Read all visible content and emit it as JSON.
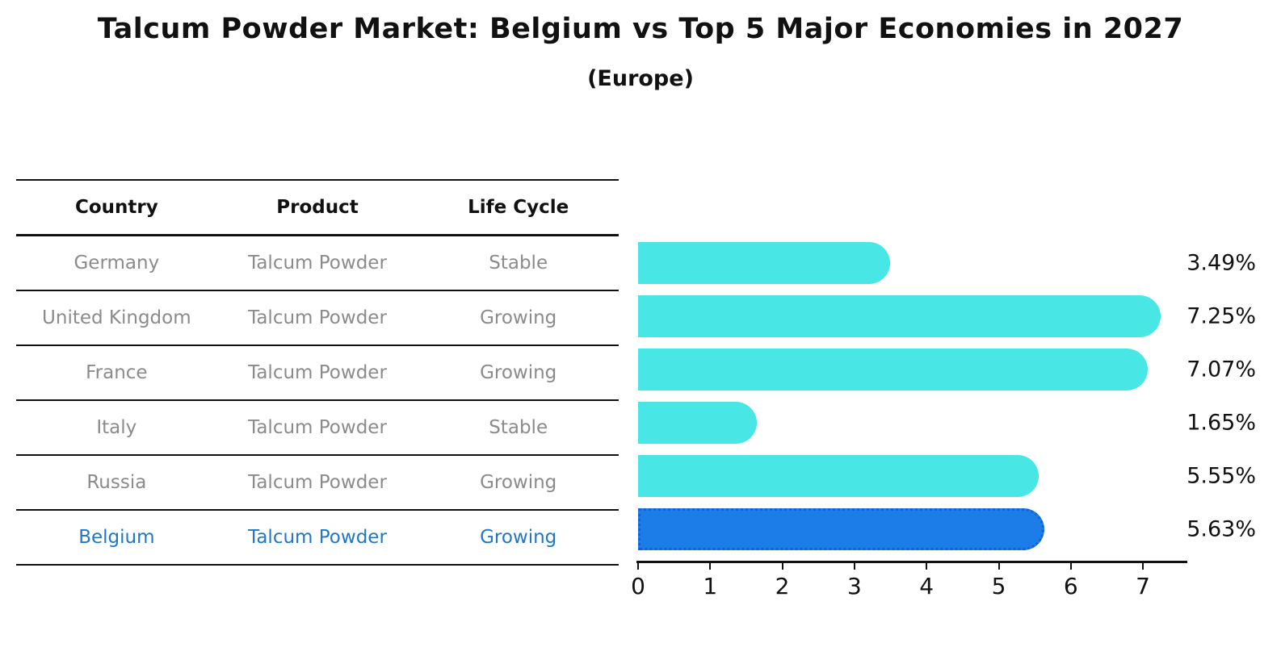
{
  "title": "Talcum Powder Market: Belgium vs Top 5 Major Economies in 2027",
  "subtitle": "(Europe)",
  "table": {
    "headers": [
      "Country",
      "Product",
      "Life Cycle"
    ],
    "rows": [
      {
        "country": "Germany",
        "product": "Talcum Powder",
        "life_cycle": "Stable",
        "highlighted": false
      },
      {
        "country": "United Kingdom",
        "product": "Talcum Powder",
        "life_cycle": "Growing",
        "highlighted": false
      },
      {
        "country": "France",
        "product": "Talcum Powder",
        "life_cycle": "Growing",
        "highlighted": false
      },
      {
        "country": "Italy",
        "product": "Talcum Powder",
        "life_cycle": "Stable",
        "highlighted": false
      },
      {
        "country": "Russia",
        "product": "Talcum Powder",
        "life_cycle": "Growing",
        "highlighted": false
      },
      {
        "country": "Belgium",
        "product": "Talcum Powder",
        "life_cycle": "Growing",
        "highlighted": true
      }
    ]
  },
  "chart_data": {
    "type": "bar",
    "orientation": "horizontal",
    "title": "Talcum Powder Market: Belgium vs Top 5 Major Economies in 2027",
    "subtitle": "(Europe)",
    "categories": [
      "Germany",
      "United Kingdom",
      "France",
      "Italy",
      "Russia",
      "Belgium"
    ],
    "values": [
      3.49,
      7.25,
      7.07,
      1.65,
      5.55,
      5.63
    ],
    "value_labels": [
      "3.49%",
      "7.25%",
      "7.07%",
      "1.65%",
      "5.55%",
      "5.63%"
    ],
    "unit": "%",
    "xlabel": "",
    "ylabel": "",
    "xlim": [
      0,
      7.65
    ],
    "x_ticks": [
      0,
      1,
      2,
      3,
      4,
      5,
      6,
      7
    ],
    "grid": false,
    "legend": false,
    "highlight_index": 5,
    "bar_color": "#48E6E4",
    "highlight_color": "#1C7CE8",
    "highlight_border_color": "#0E63D8"
  },
  "colors": {
    "background": "#FFFFFF",
    "title_text": "#111111",
    "header_text": "#111111",
    "row_text": "#8B8B8B",
    "highlight_text": "#1F77C8",
    "table_line": "#111111",
    "axis": "#111111"
  }
}
